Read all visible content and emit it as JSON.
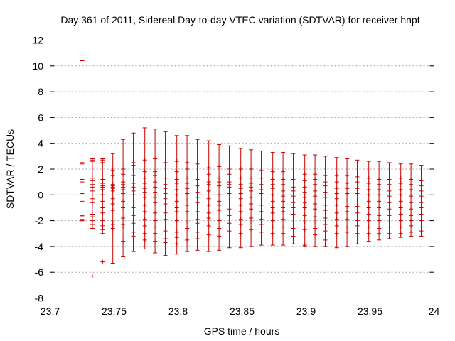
{
  "chart_data": {
    "type": "scatter",
    "title": "Day 361 of 2011, Sidereal Day-to-day VTEC variation (SDTVAR) for receiver hnpt",
    "xlabel": "GPS time / hours",
    "ylabel": "SDTVAR / TECUs",
    "xlim": [
      23.7,
      24.0
    ],
    "ylim": [
      -8,
      12
    ],
    "xticks": [
      "23.7",
      "23.75",
      "23.8",
      "23.85",
      "23.9",
      "23.95",
      "24"
    ],
    "yticks": [
      "-8",
      "-6",
      "-4",
      "-2",
      "0",
      "2",
      "4",
      "6",
      "8",
      "10",
      "12"
    ],
    "grid": true,
    "marker": "+",
    "color": "#cc0000",
    "series": [
      {
        "name": "SDTVAR",
        "points": [
          {
            "x": 23.725,
            "y": [
              10.4,
              2.5,
              2.4,
              1.2,
              1.0,
              0.15,
              0.1,
              -0.5,
              -1.6,
              -1.7,
              -1.9,
              -2.0,
              -2.1
            ]
          },
          {
            "x": 23.733,
            "y": [
              2.7,
              2.6,
              1.3,
              1.1,
              0.8,
              0.6,
              0.3,
              -0.3,
              -0.6,
              -1.5,
              -1.7,
              -2.0,
              -2.3,
              -2.5,
              -6.3
            ],
            "bar": [
              -2.6,
              2.8
            ]
          },
          {
            "x": 23.741,
            "y": [
              2.7,
              2.5,
              1.2,
              0.9,
              0.7,
              0.6,
              0.4,
              0.0,
              -0.5,
              -1.0,
              -1.4,
              -2.0,
              -2.4,
              -2.7,
              -5.2
            ],
            "bar": [
              -3.0,
              2.8
            ]
          },
          {
            "x": 23.749,
            "y": [
              1.9,
              1.5,
              0.8,
              0.7,
              0.6,
              0.5,
              0.3,
              -0.3,
              -0.7,
              -1.2,
              -2.1,
              -2.3,
              -2.6
            ],
            "bar": [
              -5.3,
              3.2
            ]
          },
          {
            "x": 23.757,
            "y": [
              2.0,
              1.6,
              1.0,
              0.8,
              0.6,
              0.4,
              0.1,
              -0.5,
              -1.0,
              -1.8,
              -2.3,
              -2.5,
              -3.6
            ],
            "bar": [
              -4.8,
              4.3
            ]
          },
          {
            "x": 23.765,
            "y": [
              2.5,
              2.3,
              1.5,
              0.9,
              0.6,
              0.3,
              0.0,
              -0.4,
              -1.0,
              -1.6,
              -2.2,
              -2.9,
              -3.2
            ],
            "bar": [
              -4.4,
              4.8
            ]
          },
          {
            "x": 23.774,
            "y": [
              2.7,
              1.8,
              1.3,
              0.9,
              0.5,
              0.2,
              -0.2,
              -0.8,
              -1.3,
              -1.9,
              -2.4,
              -3.0,
              -3.5
            ],
            "bar": [
              -4.2,
              5.2
            ]
          },
          {
            "x": 23.782,
            "y": [
              2.8,
              1.8,
              1.5,
              1.0,
              0.6,
              0.2,
              -0.2,
              -0.6,
              -1.4,
              -2.0,
              -2.5,
              -3.0,
              -3.6
            ],
            "bar": [
              -4.5,
              5.1
            ]
          },
          {
            "x": 23.79,
            "y": [
              2.5,
              1.7,
              1.3,
              0.8,
              0.5,
              0.1,
              -0.3,
              -0.7,
              -1.4,
              -1.9,
              -2.8,
              -3.4,
              -3.7
            ],
            "bar": [
              -4.7,
              4.9
            ]
          },
          {
            "x": 23.799,
            "y": [
              2.6,
              1.8,
              1.2,
              0.9,
              0.4,
              0.0,
              -0.5,
              -1.0,
              -1.3,
              -2.0,
              -2.9,
              -3.3,
              -3.8
            ],
            "bar": [
              -4.6,
              4.6
            ]
          },
          {
            "x": 23.807,
            "y": [
              2.5,
              2.0,
              1.3,
              0.9,
              0.5,
              0.1,
              -0.4,
              -0.8,
              -1.3,
              -2.1,
              -2.6,
              -3.5
            ],
            "bar": [
              -4.4,
              4.6
            ]
          },
          {
            "x": 23.815,
            "y": [
              2.4,
              1.7,
              1.2,
              0.7,
              0.2,
              -0.2,
              -0.6,
              -1.3,
              -1.9,
              -2.2,
              -2.9,
              -3.4
            ],
            "bar": [
              -4.3,
              4.3
            ]
          },
          {
            "x": 23.824,
            "y": [
              2.1,
              1.6,
              1.0,
              0.8,
              0.3,
              -0.3,
              -0.8,
              -1.4,
              -1.8,
              -2.4,
              -3.1
            ],
            "bar": [
              -4.4,
              4.2
            ]
          },
          {
            "x": 23.832,
            "y": [
              2.2,
              1.3,
              1.0,
              0.7,
              0.0,
              -0.5,
              -0.8,
              -1.2,
              -2.0,
              -2.6,
              -3.2
            ],
            "bar": [
              -4.3,
              3.9
            ]
          },
          {
            "x": 23.84,
            "y": [
              2.0,
              1.6,
              1.0,
              0.8,
              0.6,
              0.1,
              -0.4,
              -1.1,
              -1.6,
              -2.2,
              -2.8
            ],
            "bar": [
              -4.1,
              3.8
            ]
          },
          {
            "x": 23.849,
            "y": [
              2.0,
              1.3,
              0.8,
              0.5,
              0.1,
              -0.3,
              -0.8,
              -1.3,
              -1.9,
              -2.3,
              -3.0
            ],
            "bar": [
              -4.1,
              3.6
            ]
          },
          {
            "x": 23.857,
            "y": [
              2.0,
              1.3,
              0.9,
              0.6,
              0.3,
              -0.2,
              -0.7,
              -1.1,
              -1.8,
              -2.1,
              -2.7
            ],
            "bar": [
              -4.0,
              3.5
            ]
          },
          {
            "x": 23.865,
            "y": [
              1.9,
              1.3,
              0.8,
              0.4,
              0.1,
              -0.4,
              -0.8,
              -1.3,
              -1.9,
              -2.3,
              -2.9
            ],
            "bar": [
              -3.9,
              3.4
            ]
          },
          {
            "x": 23.874,
            "y": [
              1.8,
              1.2,
              0.8,
              0.5,
              0.0,
              -0.5,
              -1.0,
              -1.4,
              -2.0,
              -2.5,
              -3.0
            ],
            "bar": [
              -3.9,
              3.3
            ]
          },
          {
            "x": 23.882,
            "y": [
              1.8,
              1.2,
              0.8,
              0.3,
              -0.1,
              -0.5,
              -1.0,
              -1.3,
              -1.9,
              -2.5,
              -3.0
            ],
            "bar": [
              -3.9,
              3.3
            ]
          },
          {
            "x": 23.89,
            "y": [
              1.7,
              1.2,
              0.6,
              0.3,
              -0.1,
              -0.6,
              -1.0,
              -1.5,
              -2.1,
              -2.6,
              -3.2
            ],
            "bar": [
              -3.8,
              3.2
            ]
          },
          {
            "x": 23.899,
            "y": [
              1.6,
              1.1,
              0.6,
              0.2,
              -0.2,
              -0.6,
              -1.0,
              -1.6,
              -2.1,
              -2.7,
              -3.9
            ],
            "bar": [
              -4.0,
              3.1
            ]
          },
          {
            "x": 23.907,
            "y": [
              1.6,
              1.2,
              0.8,
              0.3,
              -0.1,
              -0.7,
              -1.1,
              -1.7,
              -2.1,
              -2.6,
              -3.1
            ],
            "bar": [
              -4.0,
              3.1
            ]
          },
          {
            "x": 23.915,
            "y": [
              1.5,
              1.0,
              0.7,
              0.2,
              -0.2,
              -0.8,
              -1.2,
              -1.8,
              -2.3,
              -2.8,
              -3.5
            ],
            "bar": [
              -4.0,
              3.0
            ]
          },
          {
            "x": 23.924,
            "y": [
              1.5,
              1.0,
              0.5,
              0.1,
              -0.3,
              -0.8,
              -1.4,
              -1.9,
              -2.4,
              -3.0
            ],
            "bar": [
              -4.1,
              2.9
            ]
          },
          {
            "x": 23.932,
            "y": [
              1.5,
              0.9,
              0.5,
              0.1,
              -0.4,
              -0.9,
              -1.3,
              -1.9,
              -2.5,
              -2.9
            ],
            "bar": [
              -4.0,
              2.8
            ]
          },
          {
            "x": 23.94,
            "y": [
              1.4,
              1.0,
              0.5,
              0.1,
              -0.4,
              -0.9,
              -1.4,
              -2.0,
              -2.4,
              -3.0
            ],
            "bar": [
              -3.8,
              2.7
            ]
          },
          {
            "x": 23.949,
            "y": [
              1.3,
              0.9,
              0.4,
              0.0,
              -0.5,
              -1.0,
              -1.5,
              -2.0,
              -2.5,
              -3.0
            ],
            "bar": [
              -3.6,
              2.6
            ]
          },
          {
            "x": 23.957,
            "y": [
              1.2,
              0.8,
              0.4,
              0.0,
              -0.5,
              -1.0,
              -1.6,
              -2.0,
              -2.6,
              -3.0
            ],
            "bar": [
              -3.5,
              2.6
            ]
          },
          {
            "x": 23.965,
            "y": [
              1.2,
              0.8,
              0.3,
              -0.1,
              -0.6,
              -1.1,
              -1.6,
              -2.1,
              -2.5,
              -3.0
            ],
            "bar": [
              -3.4,
              2.5
            ]
          },
          {
            "x": 23.974,
            "y": [
              1.3,
              0.9,
              0.4,
              0.0,
              -0.5,
              -1.0,
              -1.5,
              -2.0,
              -2.5,
              -3.0
            ],
            "bar": [
              -3.3,
              2.4
            ]
          },
          {
            "x": 23.982,
            "y": [
              1.2,
              0.8,
              0.4,
              -0.1,
              -0.6,
              -1.1,
              -1.6,
              -2.0,
              -2.4,
              -2.9
            ],
            "bar": [
              -3.2,
              2.4
            ]
          },
          {
            "x": 23.99,
            "y": [
              1.1,
              0.7,
              0.3,
              -0.1,
              -0.6,
              -1.0,
              -1.5,
              -2.0,
              -2.5,
              -2.8
            ],
            "bar": [
              -3.2,
              2.3
            ]
          }
        ]
      }
    ]
  }
}
